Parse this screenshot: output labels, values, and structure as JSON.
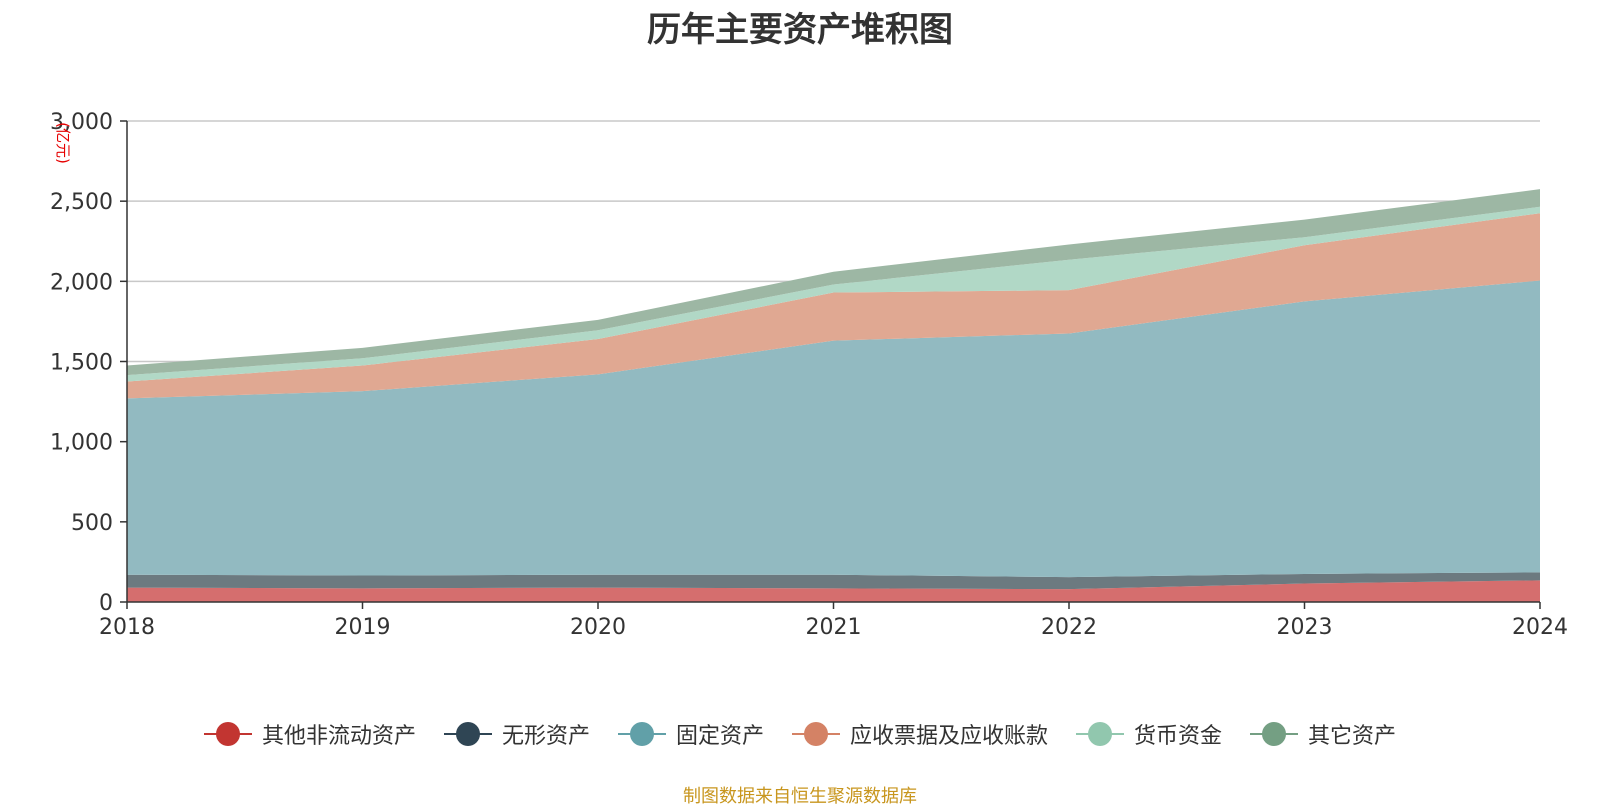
{
  "chart_data": {
    "type": "area",
    "stacked": true,
    "title": "历年主要资产堆积图",
    "unit_label": "(亿元)",
    "x": [
      "2018",
      "2019",
      "2020",
      "2021",
      "2022",
      "2023",
      "2024"
    ],
    "ylim": [
      0,
      3000
    ],
    "yticks": [
      0,
      500,
      1000,
      1500,
      2000,
      2500,
      3000
    ],
    "ytick_labels": [
      "0",
      "500",
      "1,000",
      "1,500",
      "2,000",
      "2,500",
      "3,000"
    ],
    "grid": true,
    "legend_position": "bottom",
    "series": [
      {
        "name": "其他非流动资产",
        "color": "#c23531",
        "fill": "#d56e6e",
        "values": [
          90,
          85,
          90,
          85,
          80,
          115,
          135
        ]
      },
      {
        "name": "无形资产",
        "color": "#2f4554",
        "fill": "#6c7a80",
        "values": [
          80,
          80,
          80,
          85,
          75,
          60,
          50
        ]
      },
      {
        "name": "固定资产",
        "color": "#61a0a8",
        "fill": "#92bac1",
        "values": [
          1100,
          1150,
          1250,
          1460,
          1520,
          1700,
          1820
        ]
      },
      {
        "name": "应收票据及应收账款",
        "color": "#d48265",
        "fill": "#e0a892",
        "values": [
          105,
          160,
          220,
          300,
          270,
          350,
          420
        ]
      },
      {
        "name": "货币资金",
        "color": "#91c7ae",
        "fill": "#b1d8c6",
        "values": [
          40,
          45,
          55,
          50,
          190,
          50,
          40
        ]
      },
      {
        "name": "其它资产",
        "color": "#749f83",
        "fill": "#9db7a4",
        "values": [
          60,
          65,
          65,
          80,
          95,
          110,
          110
        ]
      }
    ]
  },
  "source_note": "制图数据来自恒生聚源数据库"
}
